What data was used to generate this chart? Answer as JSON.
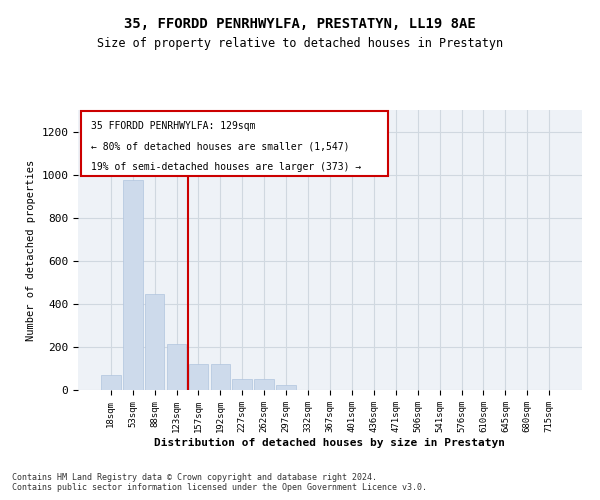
{
  "title": "35, FFORDD PENRHWYLFA, PRESTATYN, LL19 8AE",
  "subtitle": "Size of property relative to detached houses in Prestatyn",
  "xlabel": "Distribution of detached houses by size in Prestatyn",
  "ylabel": "Number of detached properties",
  "bar_color": "#cddaeb",
  "bar_edge_color": "#b0c4de",
  "categories": [
    "18sqm",
    "53sqm",
    "88sqm",
    "123sqm",
    "157sqm",
    "192sqm",
    "227sqm",
    "262sqm",
    "297sqm",
    "332sqm",
    "367sqm",
    "401sqm",
    "436sqm",
    "471sqm",
    "506sqm",
    "541sqm",
    "576sqm",
    "610sqm",
    "645sqm",
    "680sqm",
    "715sqm"
  ],
  "values": [
    70,
    975,
    445,
    215,
    120,
    120,
    50,
    50,
    25,
    0,
    0,
    0,
    0,
    0,
    0,
    0,
    0,
    0,
    0,
    0,
    0
  ],
  "property_line_x": 3.5,
  "property_label": "35 FFORDD PENRHWYLFA: 129sqm",
  "annotation_line1": "← 80% of detached houses are smaller (1,547)",
  "annotation_line2": "19% of semi-detached houses are larger (373) →",
  "ylim": [
    0,
    1300
  ],
  "yticks": [
    0,
    200,
    400,
    600,
    800,
    1000,
    1200
  ],
  "footnote": "Contains HM Land Registry data © Crown copyright and database right 2024.\nContains public sector information licensed under the Open Government Licence v3.0.",
  "grid_color": "#d0d8e0",
  "background_color": "#eef2f7",
  "line_color": "#cc0000"
}
